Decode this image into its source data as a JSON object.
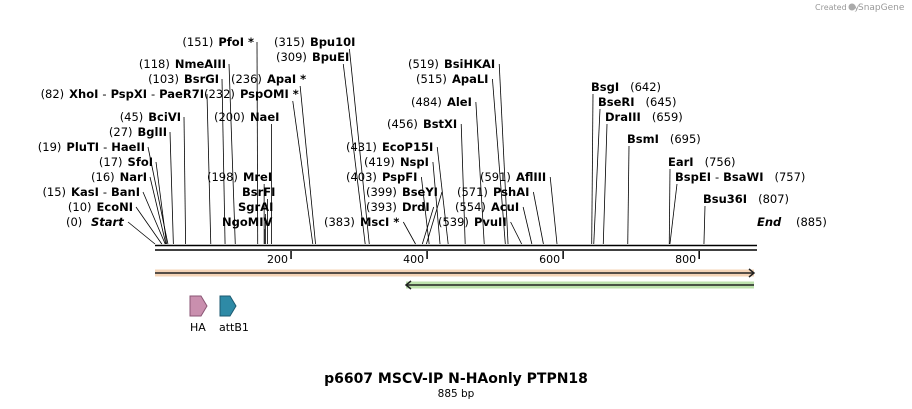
{
  "watermark": {
    "created_by": "Created by",
    "product": "SnapGene"
  },
  "plasmid": {
    "name": "p6607 MSCV-IP N-HAonly PTPN18",
    "length_label": "885 bp",
    "length_bp": 885
  },
  "ruler": {
    "ticks": [
      200,
      400,
      600,
      800
    ]
  },
  "ends": {
    "start": {
      "label": "Start",
      "pos_label": "(0)",
      "bp": 0
    },
    "end": {
      "label": "End",
      "pos_label": "(885)",
      "bp": 885
    }
  },
  "left_sites": [
    {
      "pos": "(10)",
      "name": "EcoNI",
      "bp": 10
    },
    {
      "pos": "(15)",
      "name": "KasI",
      "bp": 15,
      "extra": [
        "BanI"
      ]
    },
    {
      "pos": "(16)",
      "name": "NarI",
      "bp": 16
    },
    {
      "pos": "(17)",
      "name": "SfoI",
      "bp": 17
    },
    {
      "pos": "(19)",
      "name": "PluTI",
      "bp": 19,
      "extra": [
        "HaeII"
      ]
    },
    {
      "pos": "(27)",
      "name": "BglII",
      "bp": 27
    },
    {
      "pos": "(45)",
      "name": "BciVI",
      "bp": 45
    },
    {
      "pos": "(82)",
      "name": "XhoI",
      "bp": 82,
      "extra": [
        "PspXI",
        "PaeR7I"
      ]
    },
    {
      "pos": "(103)",
      "name": "BsrGI",
      "bp": 103
    },
    {
      "pos": "(118)",
      "name": "NmeAIII",
      "bp": 118
    },
    {
      "pos": "(151)",
      "name": "PfoI *",
      "bp": 151
    },
    {
      "pos": "(200)",
      "name": "NaeI",
      "bp": 200
    },
    {
      "pos": "(198)",
      "name": "MreI",
      "bp": 198
    },
    {
      "pos": "",
      "name": "BsrFI",
      "bp": 198
    },
    {
      "pos": "",
      "name": "SgrAI",
      "bp": 198
    },
    {
      "pos": "",
      "name": "NgoMIV",
      "bp": 198
    },
    {
      "pos": "(232)",
      "name": "PspOMI *",
      "bp": 232
    },
    {
      "pos": "(236)",
      "name": "ApaI *",
      "bp": 236
    },
    {
      "pos": "(309)",
      "name": "BpuEI",
      "bp": 309
    },
    {
      "pos": "(315)",
      "name": "Bpu10I",
      "bp": 315
    }
  ],
  "middle_sites": [
    {
      "pos": "(383)",
      "name": "MscI *",
      "bp": 383
    },
    {
      "pos": "(393)",
      "name": "DrdI",
      "bp": 393
    },
    {
      "pos": "(399)",
      "name": "BseYI",
      "bp": 399
    },
    {
      "pos": "(403)",
      "name": "PspFI",
      "bp": 403
    },
    {
      "pos": "(419)",
      "name": "NspI",
      "bp": 419
    },
    {
      "pos": "(431)",
      "name": "EcoP15I",
      "bp": 431
    },
    {
      "pos": "(456)",
      "name": "BstXI",
      "bp": 456
    },
    {
      "pos": "(484)",
      "name": "AleI",
      "bp": 484
    },
    {
      "pos": "(515)",
      "name": "ApaLI",
      "bp": 515
    },
    {
      "pos": "(519)",
      "name": "BsiHKAI",
      "bp": 519
    },
    {
      "pos": "(539)",
      "name": "PvuII",
      "bp": 539
    },
    {
      "pos": "(554)",
      "name": "AcuI",
      "bp": 554
    },
    {
      "pos": "(571)",
      "name": "PshAI",
      "bp": 571
    },
    {
      "pos": "(591)",
      "name": "AflIII",
      "bp": 591
    }
  ],
  "right_sites": [
    {
      "pos": "(642)",
      "name": "BsgI",
      "bp": 642
    },
    {
      "pos": "(645)",
      "name": "BseRI",
      "bp": 645
    },
    {
      "pos": "(659)",
      "name": "DraIII",
      "bp": 659
    },
    {
      "pos": "(695)",
      "name": "BsmI",
      "bp": 695
    },
    {
      "pos": "(756)",
      "name": "EarI",
      "bp": 756
    },
    {
      "pos": "(757)",
      "name": "BspEI",
      "bp": 757,
      "extra": [
        "BsaWI"
      ]
    },
    {
      "pos": "(807)",
      "name": "Bsu36I",
      "bp": 807
    }
  ],
  "features": [
    {
      "name": "HA",
      "color": "#c98fae",
      "stroke": "#8a5574"
    },
    {
      "name": "attB1",
      "color": "#2e8aa6",
      "stroke": "#1c5a70"
    }
  ],
  "tracks": [
    {
      "name": "orange-track",
      "color": "#e8a060",
      "start_bp": 0,
      "end_bp": 885,
      "direction": "forward"
    },
    {
      "name": "green-track",
      "color": "#6cbf4a",
      "start_bp": 369,
      "end_bp": 885,
      "direction": "reverse"
    }
  ],
  "colors": {
    "backbone": "#000000",
    "label": "#000000"
  }
}
